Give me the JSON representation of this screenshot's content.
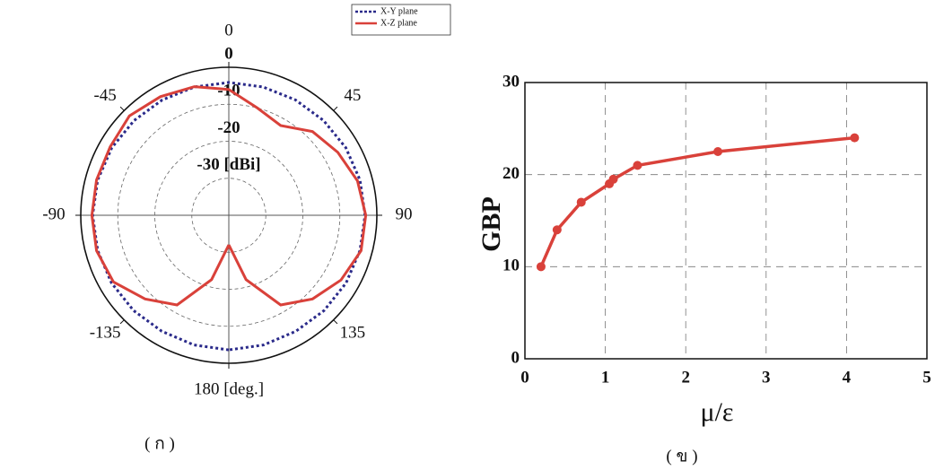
{
  "chart_data": [
    {
      "type": "polar",
      "caption": "( ก )",
      "x": [
        -180,
        -165,
        -150,
        -135,
        -120,
        -105,
        -90,
        -75,
        -60,
        -45,
        -30,
        -15,
        0,
        15,
        30,
        45,
        60,
        75,
        90,
        105,
        120,
        135,
        150,
        165,
        180
      ],
      "series": [
        {
          "name": "X-Y plane",
          "color": "#2a2a8a",
          "style": "dotted",
          "values": [
            -3.6,
            -3.7,
            -3.8,
            -3.6,
            -3.4,
            -3.3,
            -3.2,
            -3.3,
            -3.5,
            -3.8,
            -4,
            -4.1,
            -4.1,
            -4.1,
            -4,
            -3.8,
            -3.5,
            -3.3,
            -3.2,
            -3.3,
            -3.4,
            -3.6,
            -3.8,
            -3.7,
            -3.6
          ]
        },
        {
          "name": "X-Z plane",
          "color": "#d9413a",
          "style": "solid",
          "values": [
            -32,
            -22,
            -12,
            -8,
            -4,
            -3,
            -3,
            -3,
            -3,
            -2,
            -3,
            -4,
            -6,
            -10,
            -12,
            -8,
            -6,
            -4,
            -3,
            -3,
            -5,
            -8,
            -12,
            -22,
            -32
          ]
        }
      ],
      "rlim": [
        -40,
        0
      ],
      "rticks": [
        0,
        -10,
        -20,
        {
          "value": -30,
          "label": "-30 [dBi]"
        }
      ],
      "thetaticks": [
        0,
        45,
        90,
        135,
        {
          "value": 180,
          "label": "180 [deg.]"
        },
        -135,
        -90,
        -45
      ],
      "legend": "upper right"
    },
    {
      "type": "line",
      "caption": "( ข )",
      "xlabel": "μ/ε",
      "ylabel": "GBP",
      "x": [
        0.2,
        0.4,
        0.7,
        1.05,
        1.1,
        1.4,
        2.4,
        4.1
      ],
      "series": [
        {
          "color": "#d9413a",
          "values": [
            10,
            14,
            17,
            19,
            19.5,
            21,
            22.5,
            24
          ]
        }
      ],
      "xlim": [
        0,
        5
      ],
      "ylim": [
        0,
        30
      ],
      "xticks": [
        0,
        1,
        2,
        3,
        4,
        5
      ],
      "yticks": [
        0,
        10,
        20,
        30
      ],
      "grid": true
    }
  ]
}
